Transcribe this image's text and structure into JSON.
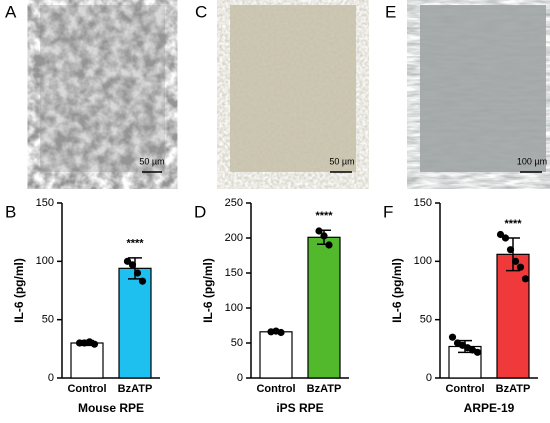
{
  "images": [
    {
      "panel": "A",
      "scale": "50 µm"
    },
    {
      "panel": "C",
      "scale": "50 µm"
    },
    {
      "panel": "E",
      "scale": "100 µm"
    }
  ],
  "chart_data": [
    {
      "type": "bar",
      "panel": "B",
      "ylabel": "IL-6  (pg/ml)",
      "xlabel": "Mouse RPE",
      "categories": [
        "Control",
        "BzATP"
      ],
      "values": [
        30,
        94
      ],
      "errors": [
        2,
        9
      ],
      "colors": [
        "#ffffff",
        "#1ec0ef"
      ],
      "points": [
        [
          30,
          30,
          31,
          29
        ],
        [
          100,
          97,
          90,
          83
        ]
      ],
      "annotation": "****",
      "ylim": [
        0,
        150
      ],
      "yticks": [
        0,
        50,
        100,
        150
      ]
    },
    {
      "type": "bar",
      "panel": "D",
      "ylabel": "IL-6  (pg/ml)",
      "xlabel": "iPS RPE",
      "categories": [
        "Control",
        "BzATP"
      ],
      "values": [
        66,
        201
      ],
      "errors": [
        2,
        10
      ],
      "colors": [
        "#ffffff",
        "#52b92c"
      ],
      "points": [
        [
          66,
          67,
          65
        ],
        [
          210,
          203,
          190
        ]
      ],
      "annotation": "****",
      "ylim": [
        0,
        250
      ],
      "yticks": [
        0,
        50,
        100,
        150,
        200,
        250
      ]
    },
    {
      "type": "bar",
      "panel": "F",
      "ylabel": "IL-6  (pg/ml)",
      "xlabel": "ARPE-19",
      "categories": [
        "Control",
        "BzATP"
      ],
      "values": [
        27,
        106
      ],
      "errors": [
        5,
        14
      ],
      "colors": [
        "#ffffff",
        "#f0393a"
      ],
      "points": [
        [
          35,
          30,
          28,
          26,
          24,
          22
        ],
        [
          123,
          120,
          110,
          100,
          95,
          85
        ]
      ],
      "annotation": "****",
      "ylim": [
        0,
        150
      ],
      "yticks": [
        0,
        50,
        100,
        150
      ]
    }
  ]
}
